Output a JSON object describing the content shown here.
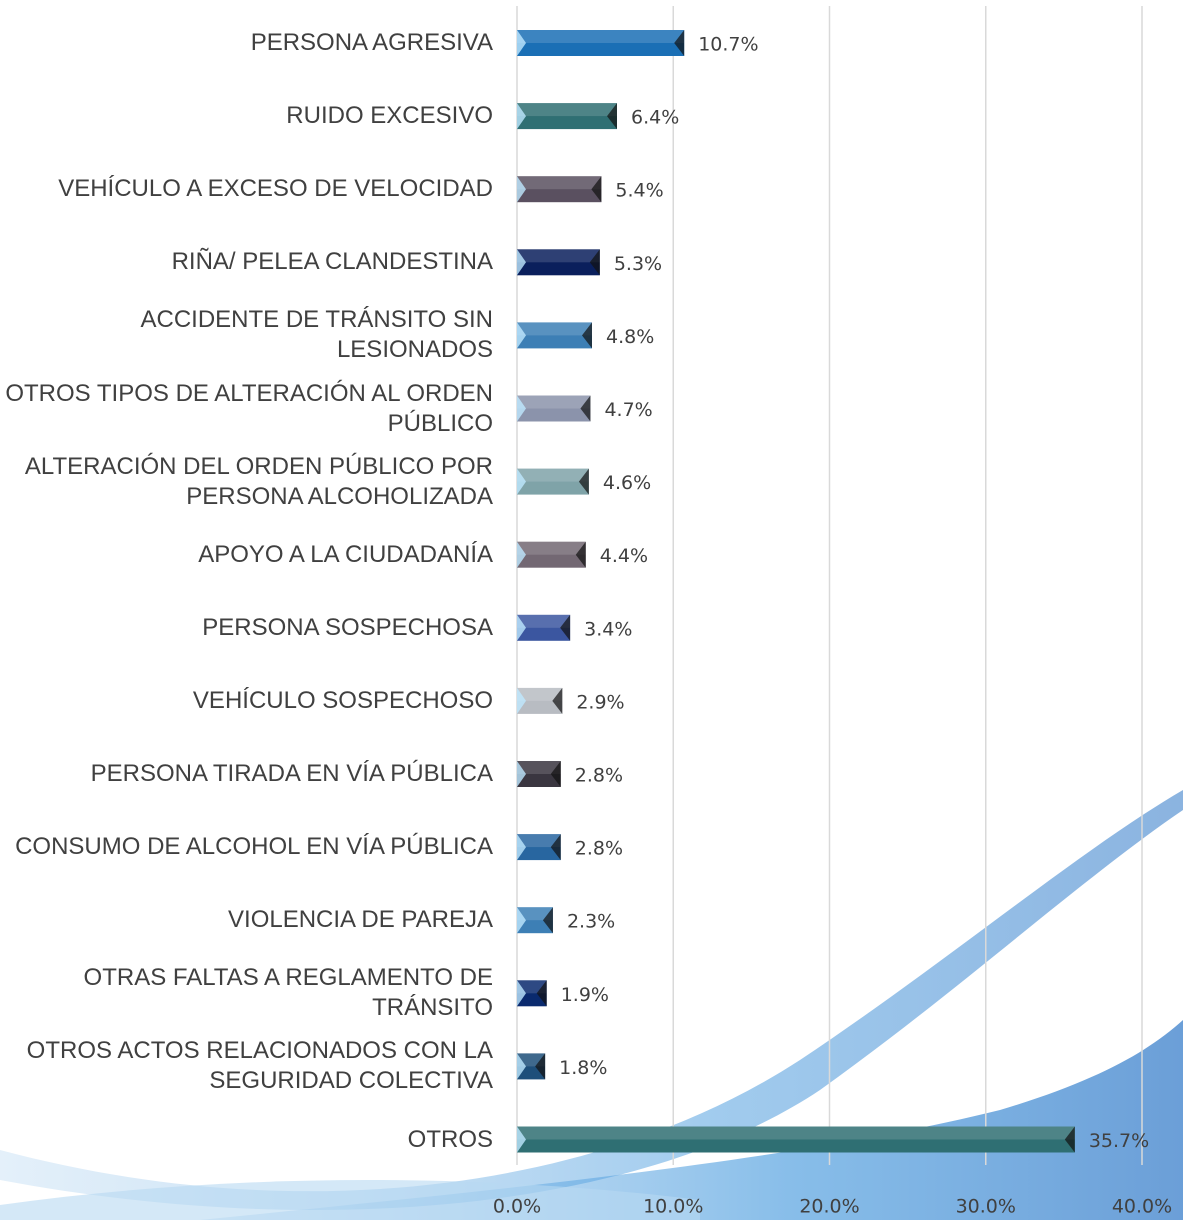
{
  "chart_data": {
    "type": "bar",
    "orientation": "horizontal",
    "categories": [
      "PERSONA AGRESIVA",
      "RUIDO EXCESIVO",
      "VEHÍCULO A EXCESO DE VELOCIDAD",
      "RIÑA/ PELEA CLANDESTINA",
      "ACCIDENTE DE TRÁNSITO SIN LESIONADOS",
      "OTROS TIPOS DE ALTERACIÓN AL ORDEN PÚBLICO",
      "ALTERACIÓN DEL ORDEN PÚBLICO POR PERSONA ALCOHOLIZADA",
      "APOYO A LA CIUDADANÍA",
      "PERSONA SOSPECHOSA",
      "VEHÍCULO SOSPECHOSO",
      "PERSONA TIRADA EN VÍA PÚBLICA",
      "CONSUMO DE ALCOHOL EN VÍA PÚBLICA",
      "VIOLENCIA DE PAREJA",
      "OTRAS FALTAS A REGLAMENTO DE TRÁNSITO",
      "OTROS ACTOS RELACIONADOS CON LA SEGURIDAD COLECTIVA",
      "OTROS"
    ],
    "values": [
      10.7,
      6.4,
      5.4,
      5.3,
      4.8,
      4.7,
      4.6,
      4.4,
      3.4,
      2.9,
      2.8,
      2.8,
      2.3,
      1.9,
      1.8,
      35.7
    ],
    "value_labels": [
      "10.7%",
      "6.4%",
      "5.4%",
      "5.3%",
      "4.8%",
      "4.7%",
      "4.6%",
      "4.4%",
      "3.4%",
      "2.9%",
      "2.8%",
      "2.8%",
      "2.3%",
      "1.9%",
      "1.8%",
      "35.7%"
    ],
    "colors": [
      "#1a6fb5",
      "#2f6f73",
      "#5a5060",
      "#0a1f5c",
      "#3d7fb5",
      "#8b93ab",
      "#7fa3a8",
      "#736873",
      "#3b56a0",
      "#b8bcc2",
      "#3a3640",
      "#2866a0",
      "#3d7fb5",
      "#0a2a6e",
      "#1e4f7a",
      "#2f6f73"
    ],
    "xlim": [
      0,
      40
    ],
    "xticks": [
      {
        "value": 0,
        "label": "0.0%"
      },
      {
        "value": 10,
        "label": "10.0%"
      },
      {
        "value": 20,
        "label": "20.0%"
      },
      {
        "value": 30,
        "label": "30.0%"
      },
      {
        "value": 40,
        "label": "40.0%"
      }
    ],
    "grid": true
  }
}
